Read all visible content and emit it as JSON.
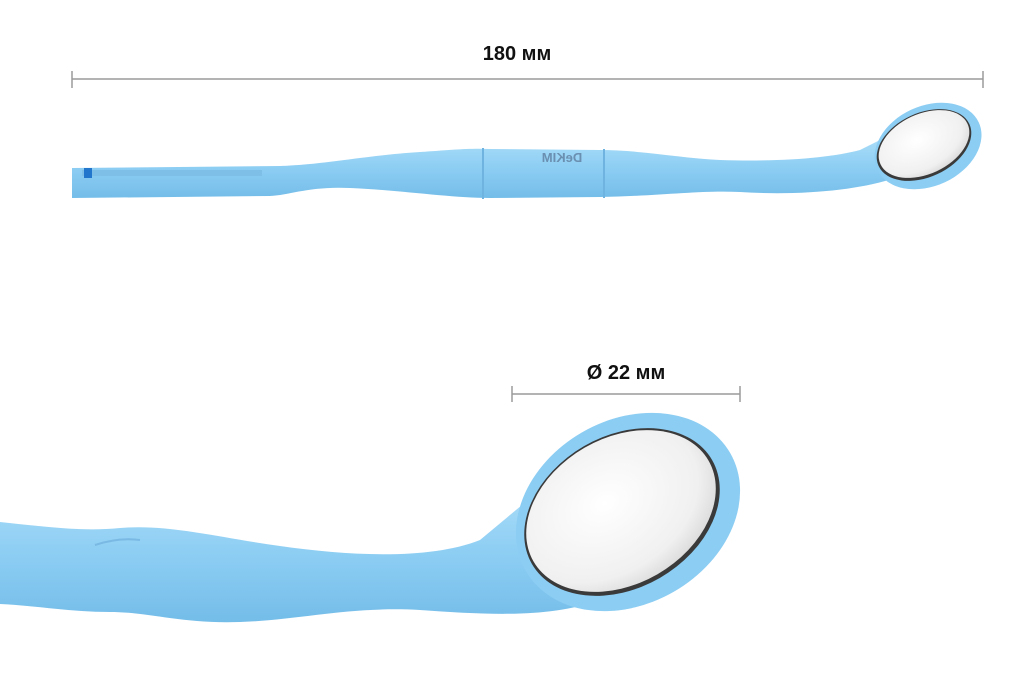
{
  "annotations": {
    "length": "180 мм",
    "diameter": "Ø 22 мм"
  },
  "brand": "DeKIM"
}
